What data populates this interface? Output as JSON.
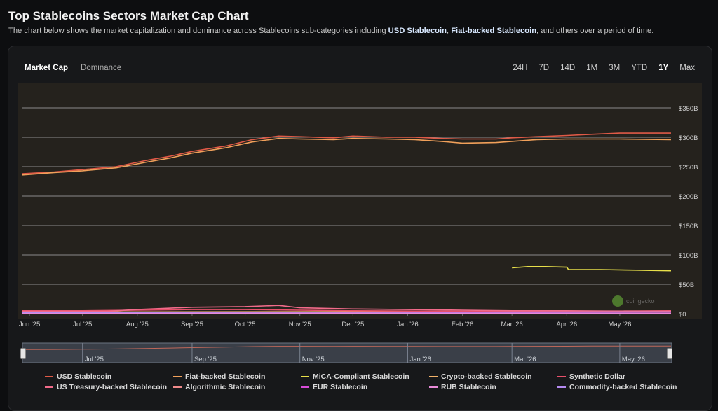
{
  "header": {
    "title": "Top Stablecoins Sectors Market Cap Chart",
    "subtitle_pre": "The chart below shows the market capitalization and dominance across Stablecoins sub-categories including ",
    "link1": "USD Stablecoin",
    "sep": ", ",
    "link2": "Fiat-backed Stablecoin",
    "subtitle_post": ", and others over a period of time."
  },
  "tabs": [
    {
      "label": "Market Cap",
      "active": true
    },
    {
      "label": "Dominance",
      "active": false
    }
  ],
  "ranges": [
    {
      "label": "24H",
      "active": false
    },
    {
      "label": "7D",
      "active": false
    },
    {
      "label": "14D",
      "active": false
    },
    {
      "label": "1M",
      "active": false
    },
    {
      "label": "3M",
      "active": false
    },
    {
      "label": "YTD",
      "active": false
    },
    {
      "label": "1Y",
      "active": true
    },
    {
      "label": "Max",
      "active": false
    }
  ],
  "watermark": "coingecko",
  "chart_data": {
    "type": "line",
    "title": "",
    "xlabel": "",
    "ylabel": "",
    "y_unit": "B",
    "ylim": [
      0,
      350
    ],
    "y_ticks": [
      0,
      50,
      100,
      150,
      200,
      250,
      300,
      350
    ],
    "y_tick_labels": [
      "$0",
      "$50B",
      "$100B",
      "$150B",
      "$200B",
      "$250B",
      "$300B",
      "$350B"
    ],
    "x_tick_labels": [
      "Jun '25",
      "Jul '25",
      "Aug '25",
      "Sep '25",
      "Oct '25",
      "Nov '25",
      "Dec '25",
      "Jan '26",
      "Feb '26",
      "Mar '26",
      "Apr '26",
      "May '26"
    ],
    "x_tick_dates": [
      "2025-06-01",
      "2025-07-01",
      "2025-08-01",
      "2025-09-01",
      "2025-10-01",
      "2025-11-01",
      "2025-12-01",
      "2026-01-01",
      "2026-02-01",
      "2026-03-01",
      "2026-04-01",
      "2026-05-01"
    ],
    "x_range": [
      "2025-05-28",
      "2026-05-30"
    ],
    "navigator_labels": [
      "Jul '25",
      "Sep '25",
      "Nov '25",
      "Jan '26",
      "Mar '26",
      "May '26"
    ],
    "navigator_dates": [
      "2025-07-01",
      "2025-09-01",
      "2025-11-01",
      "2026-01-01",
      "2026-03-01",
      "2026-05-01"
    ],
    "grid": true,
    "legend_position": "bottom",
    "series": [
      {
        "name": "USD Stablecoin",
        "color": "#e05a47",
        "points": [
          [
            "2025-05-28",
            238
          ],
          [
            "2025-06-15",
            241
          ],
          [
            "2025-07-01",
            245
          ],
          [
            "2025-07-20",
            250
          ],
          [
            "2025-08-05",
            260
          ],
          [
            "2025-08-20",
            268
          ],
          [
            "2025-09-01",
            276
          ],
          [
            "2025-09-20",
            285
          ],
          [
            "2025-10-05",
            296
          ],
          [
            "2025-10-20",
            302
          ],
          [
            "2025-11-01",
            301
          ],
          [
            "2025-11-20",
            299
          ],
          [
            "2025-12-01",
            302
          ],
          [
            "2025-12-20",
            300
          ],
          [
            "2026-01-05",
            300
          ],
          [
            "2026-01-20",
            298
          ],
          [
            "2026-02-01",
            297
          ],
          [
            "2026-02-20",
            297
          ],
          [
            "2026-03-01",
            299
          ],
          [
            "2026-03-15",
            301
          ],
          [
            "2026-04-01",
            303
          ],
          [
            "2026-04-15",
            305
          ],
          [
            "2026-05-01",
            307
          ],
          [
            "2026-05-30",
            307
          ]
        ]
      },
      {
        "name": "Fiat-backed Stablecoin",
        "color": "#f0a05a",
        "points": [
          [
            "2025-05-28",
            236
          ],
          [
            "2025-06-15",
            240
          ],
          [
            "2025-07-01",
            243
          ],
          [
            "2025-07-20",
            248
          ],
          [
            "2025-08-05",
            257
          ],
          [
            "2025-08-20",
            265
          ],
          [
            "2025-09-01",
            273
          ],
          [
            "2025-09-20",
            282
          ],
          [
            "2025-10-05",
            292
          ],
          [
            "2025-10-20",
            298
          ],
          [
            "2025-11-01",
            297
          ],
          [
            "2025-11-20",
            296
          ],
          [
            "2025-12-01",
            298
          ],
          [
            "2025-12-20",
            297
          ],
          [
            "2026-01-05",
            296
          ],
          [
            "2026-01-20",
            293
          ],
          [
            "2026-02-01",
            290
          ],
          [
            "2026-02-20",
            291
          ],
          [
            "2026-03-01",
            293
          ],
          [
            "2026-03-15",
            296
          ],
          [
            "2026-04-01",
            297
          ],
          [
            "2026-04-15",
            297
          ],
          [
            "2026-05-01",
            297
          ],
          [
            "2026-05-30",
            296
          ]
        ]
      },
      {
        "name": "MiCA-Compliant Stablecoin",
        "color": "#e8e04a",
        "points": [
          [
            "2026-03-01",
            78
          ],
          [
            "2026-03-10",
            80
          ],
          [
            "2026-03-20",
            80
          ],
          [
            "2026-04-01",
            79
          ],
          [
            "2026-04-02",
            75
          ],
          [
            "2026-04-20",
            75
          ],
          [
            "2026-05-10",
            74
          ],
          [
            "2026-05-30",
            73
          ]
        ]
      },
      {
        "name": "Crypto-backed Stablecoin",
        "color": "#f2b26a",
        "points": [
          [
            "2025-05-28",
            3
          ],
          [
            "2026-05-30",
            4
          ]
        ]
      },
      {
        "name": "Synthetic Dollar",
        "color": "#e8506a",
        "points": [
          [
            "2025-05-28",
            5
          ],
          [
            "2025-07-01",
            5
          ],
          [
            "2025-08-01",
            6
          ],
          [
            "2025-09-01",
            7
          ],
          [
            "2025-10-01",
            7
          ],
          [
            "2025-11-01",
            6
          ],
          [
            "2025-12-01",
            5
          ],
          [
            "2026-02-01",
            4
          ],
          [
            "2026-04-01",
            4
          ],
          [
            "2026-05-30",
            5
          ]
        ]
      },
      {
        "name": "US Treasury-backed Stablecoin",
        "color": "#f26b8a",
        "points": [
          [
            "2025-05-28",
            4
          ],
          [
            "2025-07-15",
            4
          ],
          [
            "2025-08-01",
            7
          ],
          [
            "2025-09-01",
            11
          ],
          [
            "2025-10-01",
            12
          ],
          [
            "2025-10-20",
            14
          ],
          [
            "2025-11-01",
            10
          ],
          [
            "2025-12-01",
            8
          ],
          [
            "2026-01-01",
            7
          ],
          [
            "2026-02-01",
            6
          ],
          [
            "2026-03-01",
            5
          ],
          [
            "2026-04-01",
            5
          ],
          [
            "2026-05-30",
            4
          ]
        ]
      },
      {
        "name": "Algorithmic Stablecoin",
        "color": "#f08a8a",
        "points": [
          [
            "2025-05-28",
            1
          ],
          [
            "2026-05-30",
            1
          ]
        ]
      },
      {
        "name": "EUR Stablecoin",
        "color": "#d84bd8",
        "points": [
          [
            "2025-05-28",
            0.5
          ],
          [
            "2026-05-30",
            0.7
          ]
        ]
      },
      {
        "name": "RUB Stablecoin",
        "color": "#e88ad8",
        "points": [
          [
            "2025-05-28",
            0.2
          ],
          [
            "2026-05-30",
            0.2
          ]
        ]
      },
      {
        "name": "Commodity-backed Stablecoin",
        "color": "#b58af0",
        "points": [
          [
            "2025-05-28",
            2
          ],
          [
            "2026-05-30",
            3
          ]
        ]
      }
    ]
  }
}
